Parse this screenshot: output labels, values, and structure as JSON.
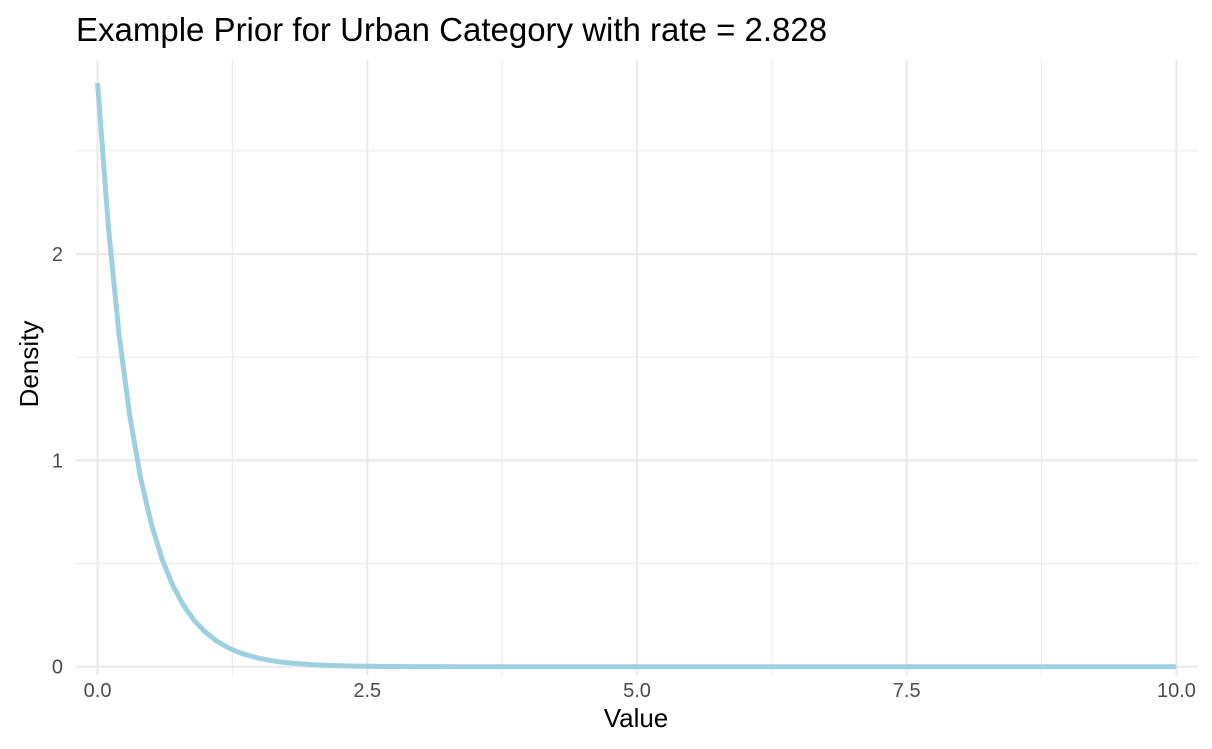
{
  "chart_data": {
    "type": "line",
    "title": "Example Prior for Urban Category with rate = 2.828",
    "xlabel": "Value",
    "ylabel": "Density",
    "xlim": [
      -0.2,
      10.2
    ],
    "ylim": [
      -0.04,
      2.94
    ],
    "x_ticks": [
      0,
      2.5,
      5,
      7.5,
      10
    ],
    "x_tick_labels": [
      "0.0",
      "2.5",
      "5.0",
      "7.5",
      "10.0"
    ],
    "x_minor_ticks": [
      1.25,
      3.75,
      6.25,
      8.75
    ],
    "y_ticks": [
      0,
      1,
      2
    ],
    "y_tick_labels": [
      "0",
      "1",
      "2"
    ],
    "y_minor_ticks": [
      0.5,
      1.5,
      2.5
    ],
    "grid": true,
    "legend": "none",
    "series": [
      {
        "color": "#9fd0e0",
        "function": "exponential_density",
        "rate": 2.828,
        "x_start": 0,
        "x_end": 10,
        "n_points": 101
      }
    ]
  }
}
